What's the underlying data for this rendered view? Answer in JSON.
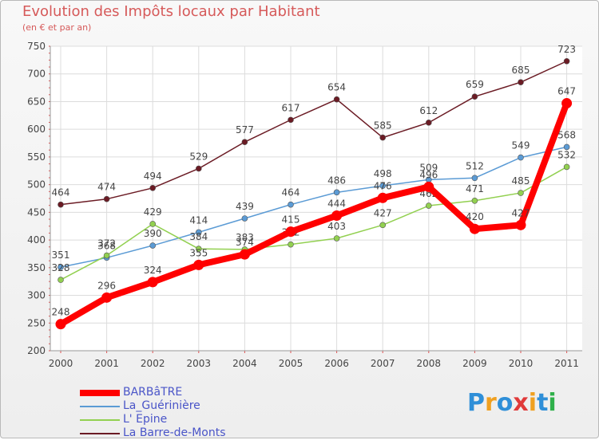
{
  "title": "Evolution des Impôts locaux par Habitant",
  "subtitle": "(en € et par an)",
  "brand": {
    "letters": [
      "P",
      "r",
      "o",
      "x",
      "i",
      "t",
      "i"
    ],
    "colors": [
      "#2f8fd8",
      "#f0a020",
      "#2f8fd8",
      "#e03a3a",
      "#f0a020",
      "#2f8fd8",
      "#2fb04a"
    ]
  },
  "chart_data": {
    "type": "line",
    "title": "Evolution des Impôts locaux par Habitant",
    "subtitle": "(en € et par an)",
    "xlabel": "",
    "ylabel": "",
    "ylim": [
      200,
      750
    ],
    "yticks": [
      200,
      250,
      300,
      350,
      400,
      450,
      500,
      550,
      600,
      650,
      700,
      750
    ],
    "grid": true,
    "legend_position": "bottom-left",
    "categories": [
      "2000",
      "2001",
      "2002",
      "2003",
      "2004",
      "2005",
      "2006",
      "2007",
      "2008",
      "2009",
      "2010",
      "2011"
    ],
    "series": [
      {
        "name": "La Barre-de-Monts",
        "color": "#6b1b24",
        "emphasis": false,
        "values": [
          464,
          474,
          494,
          529,
          577,
          617,
          654,
          585,
          612,
          659,
          685,
          723
        ]
      },
      {
        "name": "La_Guérinière",
        "color": "#5b9bd5",
        "emphasis": false,
        "values": [
          351,
          368,
          390,
          414,
          439,
          464,
          486,
          498,
          509,
          512,
          549,
          568
        ]
      },
      {
        "name": "L' Epine",
        "color": "#92d050",
        "emphasis": false,
        "values": [
          328,
          372,
          429,
          384,
          383,
          392,
          403,
          427,
          462,
          471,
          485,
          532
        ]
      },
      {
        "name": "BARBâTRE",
        "color": "#ff0000",
        "emphasis": true,
        "values": [
          248,
          296,
          324,
          355,
          374,
          415,
          444,
          476,
          496,
          420,
          427,
          647
        ]
      }
    ],
    "legend_order": [
      "BARBâTRE",
      "La_Guérinière",
      "L' Epine",
      "La Barre-de-Monts"
    ]
  }
}
